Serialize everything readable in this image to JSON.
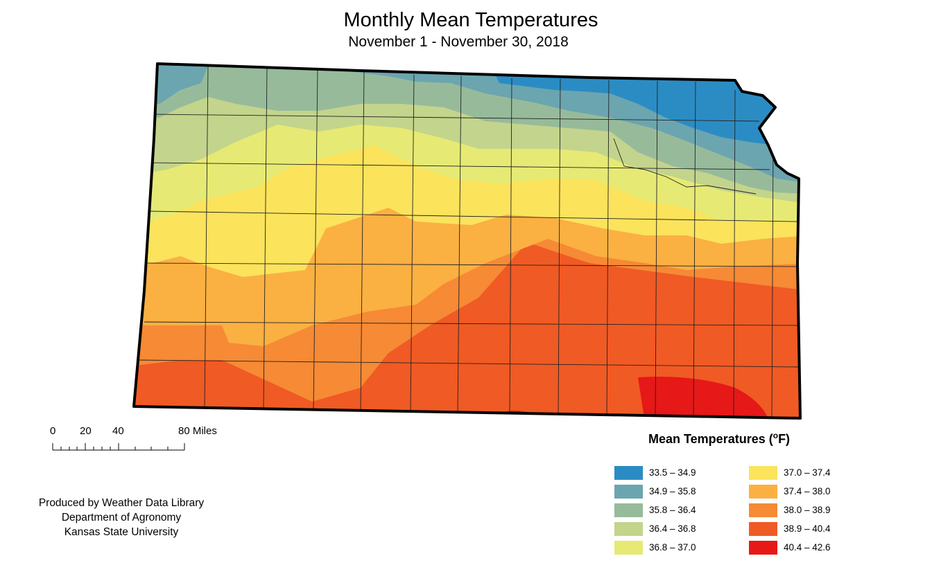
{
  "title": "Monthly Mean Temperatures",
  "subtitle": "November 1 - November 30, 2018",
  "scale": {
    "ticks": [
      "0",
      "20",
      "40",
      "80 Miles"
    ]
  },
  "credit": {
    "line1": "Produced by Weather Data Library",
    "line2": "Department of Agronomy",
    "line3": "Kansas State University"
  },
  "legend": {
    "title": "Mean Temperatures (",
    "unit_deg": "o",
    "unit_f": "F)",
    "items": [
      {
        "label": "33.5 – 34.9",
        "color": "#2b8cc4"
      },
      {
        "label": "34.9 – 35.8",
        "color": "#6ba5b0"
      },
      {
        "label": "35.8 – 36.4",
        "color": "#97bb9a"
      },
      {
        "label": "36.4 – 36.8",
        "color": "#c3d48c"
      },
      {
        "label": "36.8 – 37.0",
        "color": "#e6ea74"
      },
      {
        "label": "37.0 – 37.4",
        "color": "#fbe35c"
      },
      {
        "label": "37.4 – 38.0",
        "color": "#fbb042"
      },
      {
        "label": "38.0 – 38.9",
        "color": "#f68a35"
      },
      {
        "label": "38.9 – 40.4",
        "color": "#f05a24"
      },
      {
        "label": "40.4 – 42.6",
        "color": "#e61818"
      }
    ]
  }
}
